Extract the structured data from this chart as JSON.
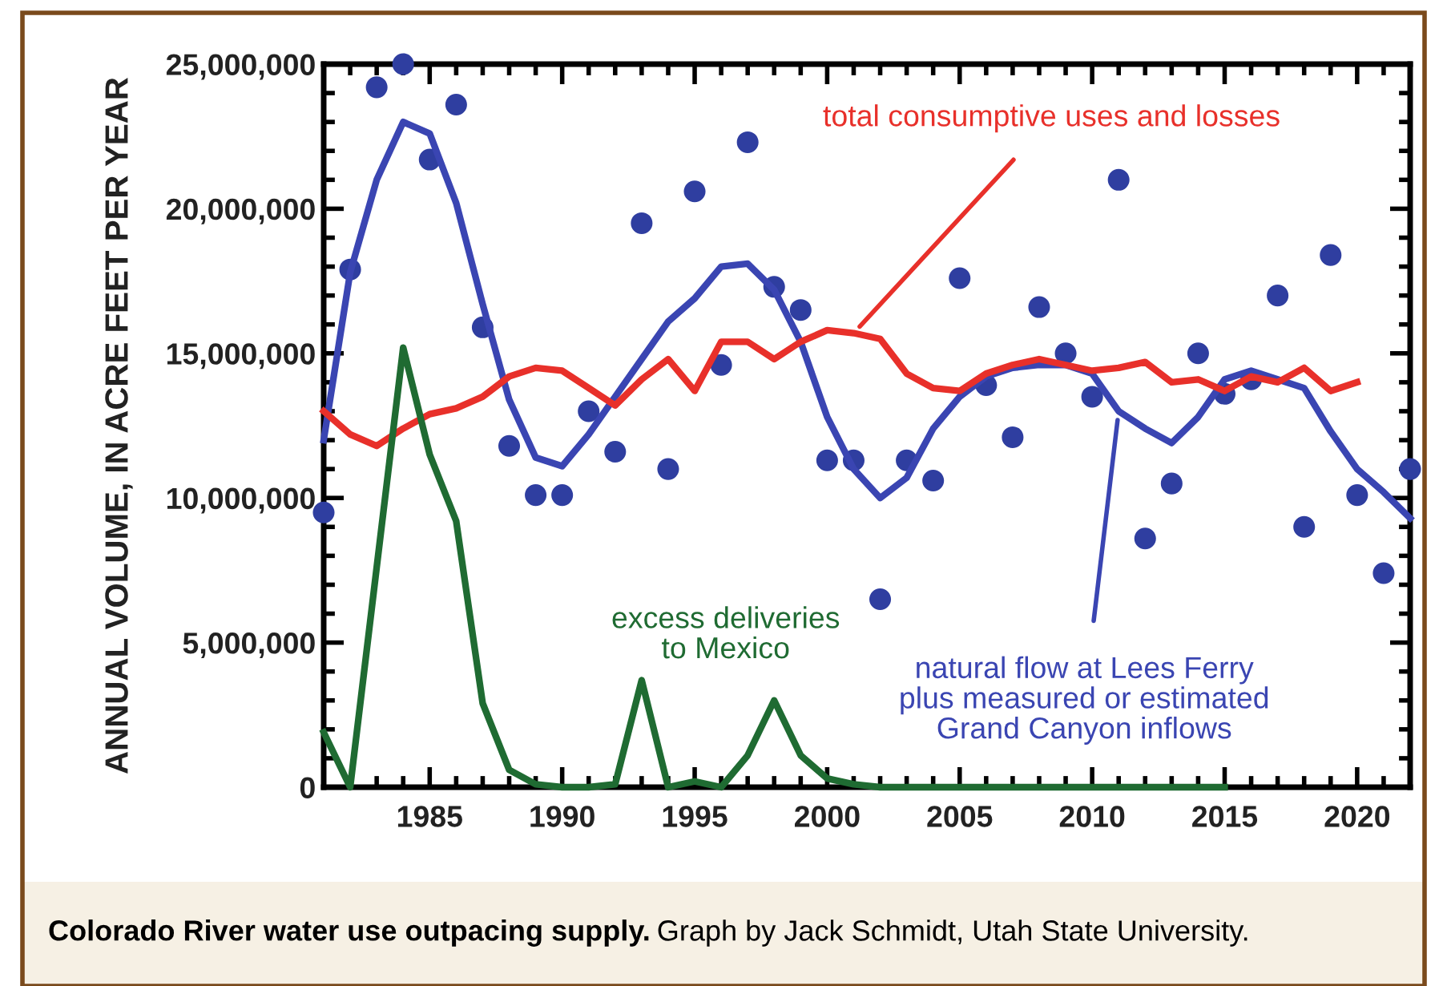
{
  "chart_data": {
    "type": "line",
    "title": "Colorado River water use outpacing supply.",
    "annotations": [
      "Graph by Jack Schmidt, Utah State University."
    ],
    "ylabel": "ANNUAL VOLUME, IN ACRE FEET PER YEAR",
    "x": [
      1981,
      1982,
      1983,
      1984,
      1985,
      1986,
      1987,
      1988,
      1989,
      1990,
      1991,
      1992,
      1993,
      1994,
      1995,
      1996,
      1997,
      1998,
      1999,
      2000,
      2001,
      2002,
      2003,
      2004,
      2005,
      2006,
      2007,
      2008,
      2009,
      2010,
      2011,
      2012,
      2013,
      2014,
      2015,
      2016,
      2017,
      2018,
      2019,
      2020,
      2021,
      2022
    ],
    "series": [
      {
        "type": "scatter",
        "color": "#2f3ea0",
        "marker": "circle",
        "values": [
          9500000,
          17900000,
          24200000,
          25000000,
          21700000,
          23600000,
          15900000,
          11800000,
          10100000,
          10100000,
          13000000,
          11600000,
          19500000,
          11000000,
          20600000,
          14600000,
          22300000,
          17300000,
          16500000,
          11300000,
          11300000,
          6500000,
          11300000,
          10600000,
          17600000,
          13900000,
          12100000,
          16600000,
          15000000,
          13500000,
          21000000,
          8600000,
          10500000,
          15000000,
          13600000,
          14100000,
          17000000,
          9000000,
          18400000,
          10100000,
          7400000,
          11000000
        ]
      },
      {
        "name": "natural flow at Lees Ferry\nplus measured or estimated\nGrand Canyon inflows",
        "color": "#3a45b2",
        "values": [
          12000000,
          17800000,
          21000000,
          23000000,
          22600000,
          20200000,
          16700000,
          13400000,
          11400000,
          11100000,
          12200000,
          13500000,
          14800000,
          16100000,
          16900000,
          18000000,
          18100000,
          17200000,
          15400000,
          12800000,
          11000000,
          10000000,
          10700000,
          12400000,
          13500000,
          14200000,
          14500000,
          14600000,
          14600000,
          14300000,
          13000000,
          12400000,
          11900000,
          12800000,
          14100000,
          14400000,
          14100000,
          13800000,
          12300000,
          11000000,
          10200000,
          9300000
        ]
      },
      {
        "name": "total consumptive uses and losses",
        "color": "#e8302a",
        "values": [
          13000000,
          12200000,
          11800000,
          12400000,
          12900000,
          13100000,
          13500000,
          14200000,
          14500000,
          14400000,
          13800000,
          13200000,
          14100000,
          14800000,
          13700000,
          15400000,
          15400000,
          14800000,
          15400000,
          15800000,
          15700000,
          15500000,
          14300000,
          13800000,
          13700000,
          14300000,
          14600000,
          14800000,
          14600000,
          14400000,
          14500000,
          14700000,
          14000000,
          14100000,
          13700000,
          14200000,
          14000000,
          14500000,
          13700000,
          14000000,
          null,
          null
        ]
      },
      {
        "name": "excess deliveries\nto Mexico",
        "color": "#1f6b32",
        "values": [
          1900000,
          0,
          7600000,
          15200000,
          11500000,
          9200000,
          2900000,
          600000,
          100000,
          0,
          0,
          100000,
          3700000,
          0,
          200000,
          0,
          1100000,
          3000000,
          1100000,
          300000,
          100000,
          0,
          0,
          0,
          0,
          0,
          0,
          0,
          0,
          0,
          0,
          0,
          0,
          0,
          0,
          null,
          null,
          null,
          null,
          null,
          null,
          null
        ]
      }
    ],
    "xlim": [
      1981,
      2022
    ],
    "xticks": [
      1985,
      1990,
      1995,
      2000,
      2005,
      2010,
      2015,
      2020
    ],
    "ylim": [
      0,
      25000000
    ],
    "yticks": [
      {
        "value": 0,
        "label": "0"
      },
      {
        "value": 5000000,
        "label": "5,000,000"
      },
      {
        "value": 10000000,
        "label": "10,000,000"
      },
      {
        "value": 15000000,
        "label": "15,000,000"
      },
      {
        "value": 20000000,
        "label": "20,000,000"
      },
      {
        "value": 25000000,
        "label": "25,000,000"
      }
    ]
  }
}
